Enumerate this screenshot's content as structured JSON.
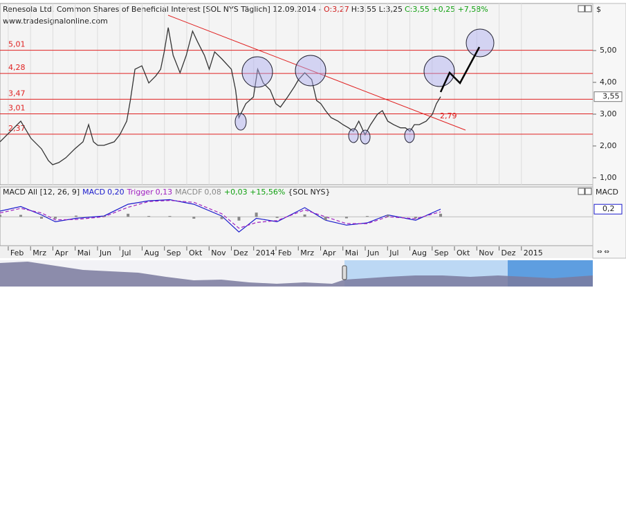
{
  "chart_data": [
    {
      "type": "line",
      "title": "Renesola Ltd. Common Shares of Beneficial Interest [SOL NYS  Täglich] 12.09.2014 -",
      "open_label": "O:3,27",
      "hl_label": "H:3,55 L:3,25",
      "close_label": "C:3,55 +0,25 +7,58%",
      "source": "www.tradesignalonline.com",
      "currency": "$",
      "annotation": "2,79",
      "x": [
        0.63,
        1.56,
        2.02,
        2.49,
        2.8,
        2.99,
        3.27,
        3.58,
        3.98,
        4.35,
        4.6,
        4.82,
        5.01,
        5.29,
        5.75,
        6.0,
        6.31,
        6.47,
        6.68,
        6.99,
        7.3,
        7.61,
        7.83,
        7.99,
        8.17,
        8.39,
        8.7,
        8.98,
        9.26,
        9.48,
        9.79,
        10.01,
        10.25,
        10.57,
        11.0,
        11.19,
        11.34,
        11.65,
        11.99,
        12.18,
        12.43,
        12.74,
        12.99,
        13.2,
        13.52,
        13.83,
        14.01,
        14.29,
        14.6,
        14.82,
        15.01,
        15.22,
        15.47,
        15.78,
        16.0,
        16.25,
        16.47,
        16.71,
        16.99,
        17.24,
        17.55,
        17.77,
        18.01,
        18.27,
        18.58,
        18.8,
        19.01,
        19.2,
        19.42,
        19.73,
        20.01,
        20.19,
        20.38
      ],
      "series": [
        {
          "color": "#333333",
          "values": [
            2.13,
            2.78,
            2.24,
            1.91,
            1.54,
            1.41,
            1.48,
            1.63,
            1.91,
            2.13,
            2.67,
            2.13,
            2.02,
            2.02,
            2.13,
            2.35,
            2.78,
            3.43,
            4.41,
            4.52,
            3.98,
            4.2,
            4.41,
            4.96,
            5.72,
            4.85,
            4.3,
            4.85,
            5.61,
            5.28,
            4.85,
            4.41,
            4.96,
            4.74,
            4.41,
            3.76,
            2.89,
            3.33,
            3.54,
            4.41,
            3.98,
            3.76,
            3.33,
            3.22,
            3.54,
            3.87,
            4.09,
            4.3,
            4.09,
            3.43,
            3.33,
            3.11,
            2.89,
            2.78,
            2.67,
            2.57,
            2.46,
            2.78,
            2.35,
            2.67,
            3.0,
            3.11,
            2.78,
            2.67,
            2.57,
            2.57,
            2.46,
            2.67,
            2.67,
            2.78,
            3.0,
            3.33,
            3.55
          ]
        }
      ],
      "levels": [
        {
          "value": 5.01,
          "label": "5,01"
        },
        {
          "value": 4.28,
          "label": "4,28"
        },
        {
          "value": 3.47,
          "label": "3,47"
        },
        {
          "value": 3.01,
          "label": "3,01"
        },
        {
          "value": 2.37,
          "label": "2,37"
        }
      ],
      "level_color": "#e02020",
      "last_label": {
        "value": 3.55,
        "label": "3,55"
      },
      "xlim": [
        0.63,
        27.2
      ],
      "xticks": [
        {
          "value": 1,
          "label": "Feb"
        },
        {
          "value": 2,
          "label": "Mrz"
        },
        {
          "value": 3,
          "label": "Apr"
        },
        {
          "value": 4,
          "label": "Mai"
        },
        {
          "value": 5,
          "label": "Jun"
        },
        {
          "value": 6,
          "label": "Jul"
        },
        {
          "value": 7,
          "label": "Aug"
        },
        {
          "value": 8,
          "label": "Sep"
        },
        {
          "value": 9,
          "label": "Okt"
        },
        {
          "value": 10,
          "label": "Nov"
        },
        {
          "value": 11,
          "label": "Dez"
        },
        {
          "value": 12,
          "label": "2014"
        },
        {
          "value": 13,
          "label": "Feb"
        },
        {
          "value": 14,
          "label": "Mrz"
        },
        {
          "value": 15,
          "label": "Apr"
        },
        {
          "value": 16,
          "label": "Mai"
        },
        {
          "value": 17,
          "label": "Jun"
        },
        {
          "value": 18,
          "label": "Jul"
        },
        {
          "value": 19,
          "label": "Aug"
        },
        {
          "value": 20,
          "label": "Sep"
        },
        {
          "value": 21,
          "label": "Okt"
        },
        {
          "value": 22,
          "label": "Nov"
        },
        {
          "value": 23,
          "label": "Dez"
        },
        {
          "value": 24,
          "label": "2015"
        }
      ],
      "ylim": [
        0.78,
        6.48
      ],
      "yticks": [
        {
          "value": 1,
          "label": "1,00"
        },
        {
          "value": 2,
          "label": "2,00"
        },
        {
          "value": 3,
          "label": "3,00"
        },
        {
          "value": 4,
          "label": "4,00"
        },
        {
          "value": 5,
          "label": "5,00"
        }
      ],
      "grid": true
    },
    {
      "type": "macd",
      "title": "MACD All [12, 26, 9]",
      "change": "+0,03 +15,56%",
      "symbol": "{SOL NYS}",
      "axis_label": "MACD",
      "x": [
        0.63,
        1.56,
        2.49,
        3.11,
        4.04,
        5.29,
        6.37,
        7.3,
        8.24,
        9.32,
        10.57,
        11.34,
        12.12,
        13.05,
        14.29,
        15.22,
        16.16,
        17.09,
        18.01,
        19.26,
        20.38
      ],
      "series": [
        {
          "name": "MACD",
          "value_label": "0,20",
          "color": "#1a1acc",
          "style": "line",
          "values": [
            0.15,
            0.27,
            0.05,
            -0.13,
            -0.04,
            0.02,
            0.33,
            0.42,
            0.45,
            0.33,
            0.02,
            -0.4,
            -0.04,
            -0.13,
            0.24,
            -0.09,
            -0.22,
            -0.16,
            0.05,
            -0.09,
            0.2
          ]
        },
        {
          "name": "Trigger",
          "value_label": "0,13",
          "color": "#a020c0",
          "style": "dashed",
          "values": [
            0.1,
            0.22,
            0.1,
            -0.08,
            -0.07,
            0.0,
            0.25,
            0.4,
            0.43,
            0.38,
            0.08,
            -0.3,
            -0.15,
            -0.1,
            0.18,
            0.0,
            -0.18,
            -0.18,
            0.0,
            -0.05,
            0.13
          ]
        },
        {
          "name": "MACDF",
          "value_label": "0,08",
          "color": "#888888",
          "style": "histogram",
          "values": [
            0.05,
            0.05,
            -0.05,
            -0.05,
            0.03,
            0.02,
            0.08,
            0.02,
            0.02,
            -0.05,
            -0.06,
            -0.1,
            0.11,
            -0.03,
            0.06,
            -0.09,
            -0.04,
            0.02,
            0.05,
            -0.04,
            0.08
          ]
        }
      ],
      "last_label": {
        "value": 0.2,
        "label": "0,2"
      },
      "ylim": [
        -0.76,
        0.75
      ]
    }
  ]
}
